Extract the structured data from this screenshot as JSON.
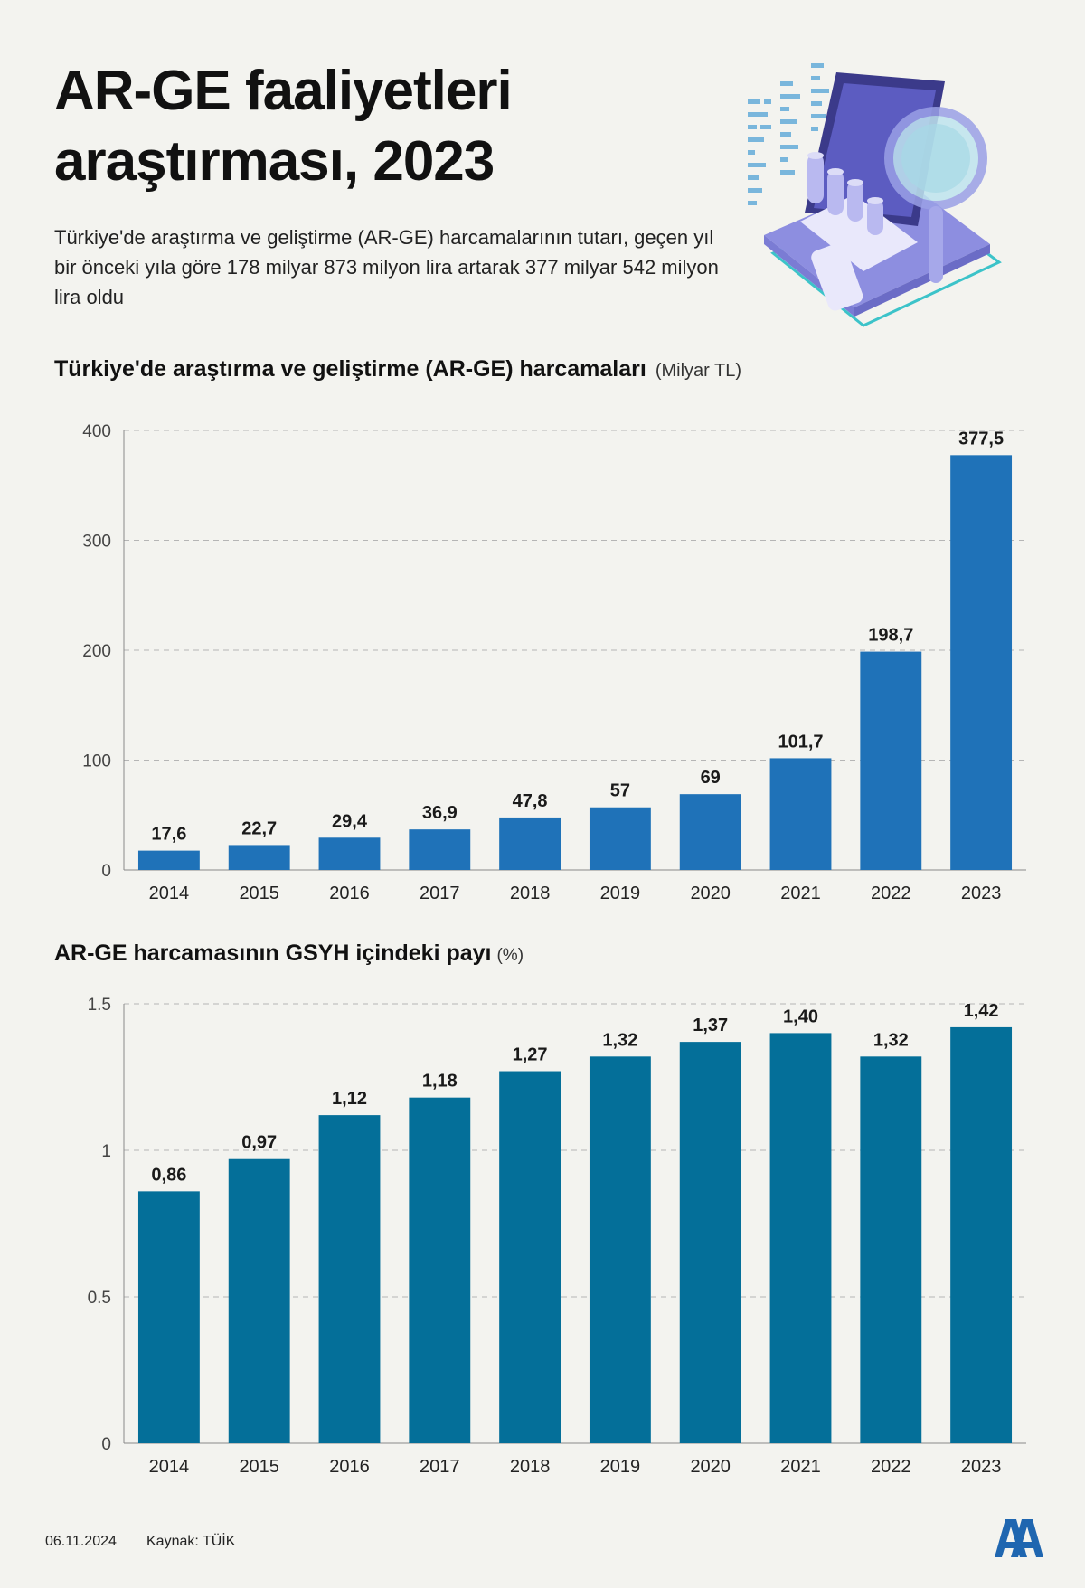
{
  "title": "AR-GE faaliyetleri araştırması, 2023",
  "subtitle": "Türkiye'de araştırma ve geliştirme (AR-GE) harcamalarının tutarı, geçen yıl bir önceki yıla göre 178 milyar 873 milyon lira artarak 377 milyar 542 milyon lira oldu",
  "chart_data": [
    {
      "type": "bar",
      "title": "Türkiye'de araştırma ve geliştirme (AR-GE) harcamaları",
      "unit": "(Milyar TL)",
      "categories": [
        "2014",
        "2015",
        "2016",
        "2017",
        "2018",
        "2019",
        "2020",
        "2021",
        "2022",
        "2023"
      ],
      "values": [
        17.6,
        22.7,
        29.4,
        36.9,
        47.8,
        57,
        69,
        101.7,
        198.7,
        377.5
      ],
      "labels": [
        "17,6",
        "22,7",
        "29,4",
        "36,9",
        "47,8",
        "57",
        "69",
        "101,7",
        "198,7",
        "377,5"
      ],
      "yticks": [
        "0",
        "100",
        "200",
        "300",
        "400"
      ],
      "ytick_values": [
        0,
        100,
        200,
        300,
        400
      ],
      "ylim": [
        0,
        400
      ],
      "color": "#1f72b8",
      "grid": true,
      "xlabel": "",
      "ylabel": ""
    },
    {
      "type": "bar",
      "title": "AR-GE harcamasının GSYH içindeki payı",
      "unit": "(%)",
      "categories": [
        "2014",
        "2015",
        "2016",
        "2017",
        "2018",
        "2019",
        "2020",
        "2021",
        "2022",
        "2023"
      ],
      "values": [
        0.86,
        0.97,
        1.12,
        1.18,
        1.27,
        1.32,
        1.37,
        1.4,
        1.32,
        1.42
      ],
      "labels": [
        "0,86",
        "0,97",
        "1,12",
        "1,18",
        "1,27",
        "1,32",
        "1,37",
        "1,40",
        "1,32",
        "1,42"
      ],
      "yticks": [
        "0",
        "0.5",
        "1",
        "1.5"
      ],
      "ytick_values": [
        0,
        0.5,
        1,
        1.5
      ],
      "ylim": [
        0,
        1.5
      ],
      "color": "#046f99",
      "grid": true,
      "xlabel": "",
      "ylabel": ""
    }
  ],
  "footer": {
    "date": "06.11.2024",
    "source": "Kaynak: TÜİK",
    "logo": "AA"
  },
  "icons": {
    "illustration": "laptop-magnifier-analytics-icon",
    "logo": "aa-logo-icon"
  }
}
